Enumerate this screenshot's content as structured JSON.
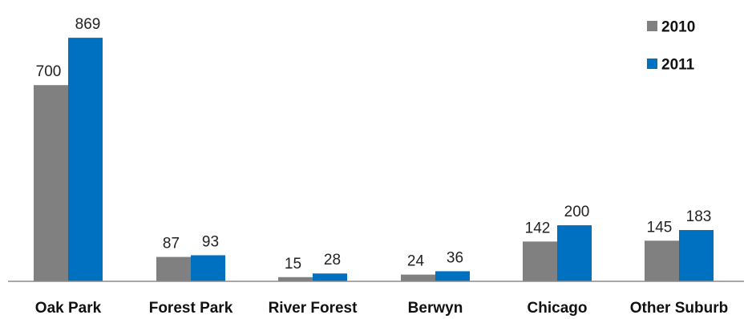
{
  "chart_data": {
    "type": "bar",
    "categories": [
      "Oak Park",
      "Forest Park",
      "River Forest",
      "Berwyn",
      "Chicago",
      "Other Suburb"
    ],
    "series": [
      {
        "name": "2010",
        "values": [
          700,
          87,
          15,
          24,
          142,
          145
        ],
        "color": "#808080"
      },
      {
        "name": "2011",
        "values": [
          869,
          93,
          28,
          36,
          200,
          183
        ],
        "color": "#0070c0"
      }
    ],
    "ylim": [
      0,
      1000
    ],
    "grid": false,
    "legend_position": "top-right",
    "data_labels": true
  }
}
